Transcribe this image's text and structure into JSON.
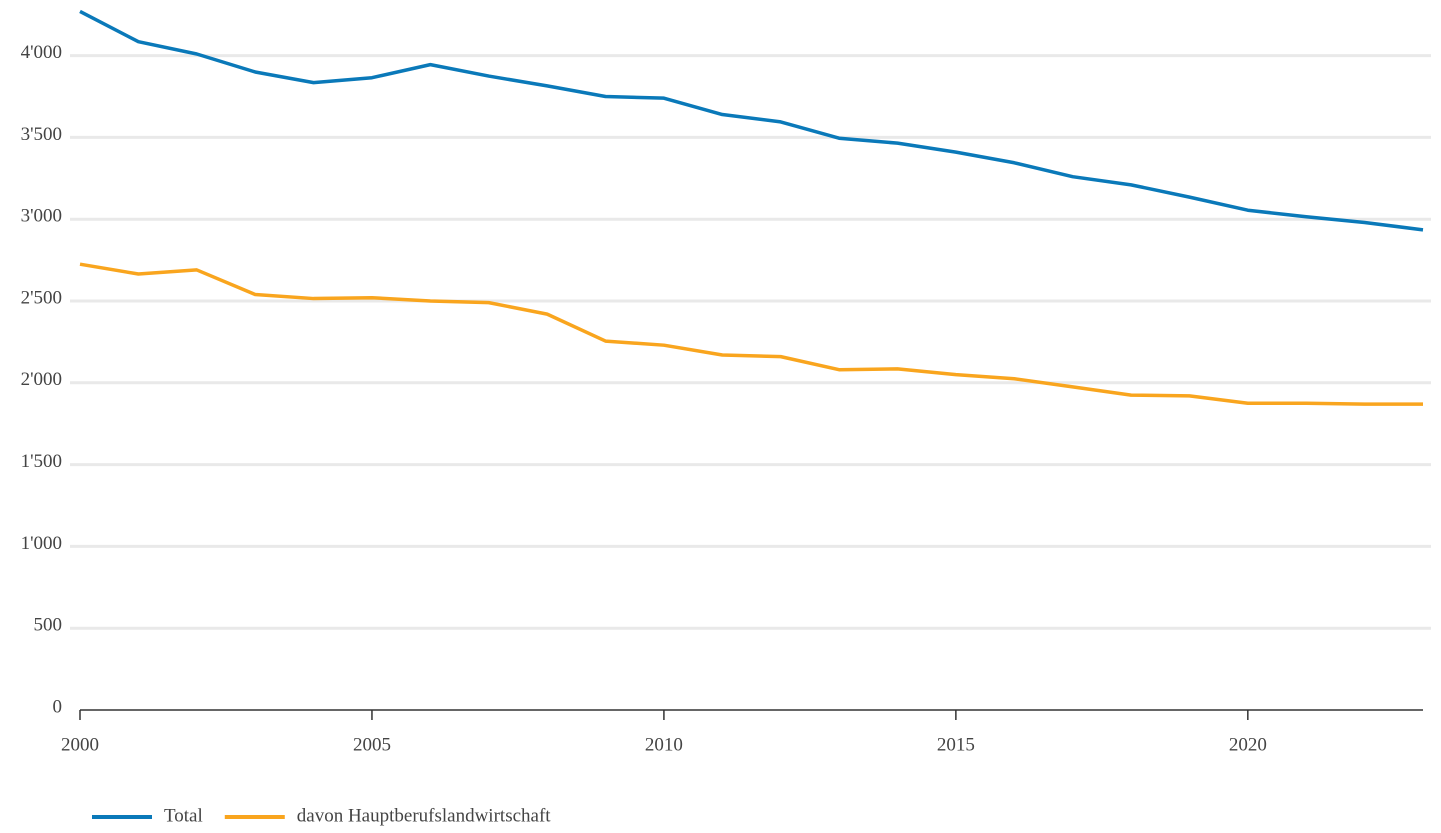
{
  "chart_data": {
    "type": "line",
    "x": [
      2000,
      2001,
      2002,
      2003,
      2004,
      2005,
      2006,
      2007,
      2008,
      2009,
      2010,
      2011,
      2012,
      2013,
      2014,
      2015,
      2016,
      2017,
      2018,
      2019,
      2020,
      2021,
      2022,
      2023
    ],
    "series": [
      {
        "name": "Total",
        "color": "#0a79b9",
        "values": [
          4270,
          4085,
          4010,
          3900,
          3835,
          3865,
          3945,
          3875,
          3815,
          3750,
          3740,
          3640,
          3595,
          3495,
          3465,
          3410,
          3345,
          3260,
          3210,
          3135,
          3055,
          3015,
          2980,
          2935
        ]
      },
      {
        "name": "davon Hauptberufslandwirtschaft",
        "color": "#f9a51e",
        "values": [
          2725,
          2665,
          2690,
          2540,
          2515,
          2520,
          2500,
          2490,
          2420,
          2255,
          2230,
          2170,
          2160,
          2080,
          2085,
          2050,
          2025,
          1975,
          1925,
          1920,
          1875,
          1875,
          1870,
          1870
        ]
      }
    ],
    "xlim": [
      2000,
      2023
    ],
    "xticks": [
      2000,
      2005,
      2010,
      2015,
      2020
    ],
    "ylim": [
      0,
      4340
    ],
    "yticks": [
      0,
      500,
      {
        "value": 1000,
        "label": "1'000"
      },
      {
        "value": 1500,
        "label": "1'500"
      },
      {
        "value": 2000,
        "label": "2'000"
      },
      {
        "value": 2500,
        "label": "2'500"
      },
      {
        "value": 3000,
        "label": "3'000"
      },
      {
        "value": 3500,
        "label": "3'500"
      },
      {
        "value": 4000,
        "label": "4'000"
      }
    ],
    "grid": true,
    "legend": "bottom-left"
  }
}
